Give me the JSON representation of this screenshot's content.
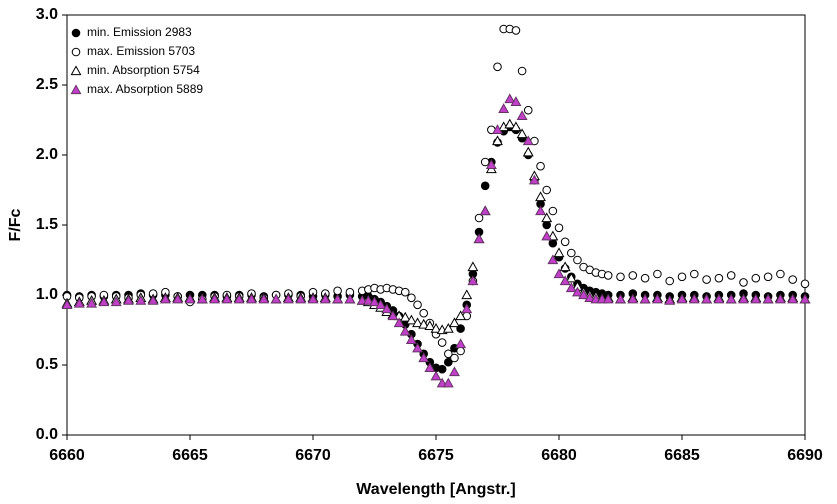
{
  "chart_data": {
    "type": "scatter",
    "xlabel": "Wavelength [Angstr.]",
    "ylabel": "F/Fc",
    "xlim": [
      6660,
      6690
    ],
    "ylim": [
      0,
      3
    ],
    "xticks": [
      6660,
      6665,
      6670,
      6675,
      6680,
      6685,
      6690
    ],
    "yticks": [
      {
        "value": 0,
        "label": "0.0"
      },
      {
        "value": 0.5,
        "label": "0.5"
      },
      {
        "value": 1,
        "label": "1.0"
      },
      {
        "value": 1.5,
        "label": "1.5"
      },
      {
        "value": 2,
        "label": "2.0"
      },
      {
        "value": 2.5,
        "label": "2.5"
      },
      {
        "value": 3,
        "label": "3.0"
      }
    ],
    "grid": false,
    "legend": "upper-left",
    "x": [
      6660,
      6660.5,
      6661,
      6661.5,
      6662,
      6662.5,
      6663,
      6663.5,
      6664,
      6664.5,
      6665,
      6665.5,
      6666,
      6666.5,
      6667,
      6667.5,
      6668,
      6668.5,
      6669,
      6669.5,
      6670,
      6670.5,
      6671,
      6671.5,
      6672,
      6672.25,
      6672.5,
      6672.75,
      6673,
      6673.25,
      6673.5,
      6673.75,
      6674,
      6674.25,
      6674.5,
      6674.75,
      6675,
      6675.25,
      6675.5,
      6675.75,
      6676,
      6676.25,
      6676.5,
      6676.75,
      6677,
      6677.25,
      6677.5,
      6677.75,
      6678,
      6678.25,
      6678.5,
      6678.75,
      6679,
      6679.25,
      6679.5,
      6679.75,
      6680,
      6680.25,
      6680.5,
      6680.75,
      6681,
      6681.25,
      6681.5,
      6681.75,
      6682,
      6682.5,
      6683,
      6683.5,
      6684,
      6684.5,
      6685,
      6685.5,
      6686,
      6686.5,
      6687,
      6687.5,
      6688,
      6688.5,
      6689,
      6689.5,
      6690
    ],
    "series": [
      {
        "name": "min. Emission 2983",
        "marker": "circle",
        "color": "#000000",
        "fill": "#000000",
        "values": [
          1.0,
          0.99,
          1.0,
          0.99,
          1.0,
          1.0,
          1.01,
          1.0,
          1.0,
          0.99,
          1.0,
          1.0,
          1.0,
          0.99,
          1.0,
          1.0,
          0.99,
          1.0,
          1.0,
          1.0,
          0.99,
          1.0,
          0.99,
          1.0,
          0.99,
          0.99,
          0.97,
          0.95,
          0.92,
          0.89,
          0.85,
          0.79,
          0.72,
          0.65,
          0.58,
          0.52,
          0.48,
          0.47,
          0.52,
          0.62,
          0.76,
          0.93,
          1.15,
          1.45,
          1.78,
          1.95,
          2.09,
          2.17,
          2.2,
          2.18,
          2.12,
          2.0,
          1.82,
          1.65,
          1.5,
          1.37,
          1.27,
          1.19,
          1.13,
          1.08,
          1.05,
          1.03,
          1.02,
          1.01,
          1.0,
          1.0,
          1.01,
          1.0,
          1.0,
          0.99,
          1.0,
          1.0,
          0.99,
          1.0,
          1.0,
          1.01,
          1.0,
          0.99,
          1.0,
          1.0,
          0.99
        ]
      },
      {
        "name": "max. Emission 5703",
        "marker": "circle",
        "color": "#000000",
        "fill": "#ffffff",
        "values": [
          0.99,
          0.98,
          0.99,
          1.0,
          0.99,
          0.98,
          1.0,
          1.01,
          1.02,
          0.99,
          0.95,
          0.97,
          0.99,
          1.0,
          0.99,
          1.01,
          0.98,
          1.0,
          1.01,
          0.99,
          1.02,
          1.01,
          1.03,
          1.02,
          1.03,
          1.04,
          1.05,
          1.04,
          1.05,
          1.04,
          1.03,
          1.02,
          0.98,
          0.93,
          0.87,
          0.8,
          0.72,
          0.66,
          0.58,
          0.55,
          0.6,
          0.85,
          1.1,
          1.55,
          1.95,
          2.18,
          2.63,
          2.9,
          2.9,
          2.89,
          2.6,
          2.32,
          2.1,
          1.92,
          1.75,
          1.6,
          1.48,
          1.38,
          1.3,
          1.25,
          1.2,
          1.18,
          1.16,
          1.15,
          1.14,
          1.13,
          1.14,
          1.12,
          1.15,
          1.1,
          1.13,
          1.15,
          1.11,
          1.12,
          1.14,
          1.09,
          1.12,
          1.13,
          1.15,
          1.11,
          1.08
        ]
      },
      {
        "name": "min. Absorption 5754",
        "marker": "triangle",
        "color": "#000000",
        "fill": "#ffffff",
        "values": [
          0.94,
          0.95,
          0.96,
          0.96,
          0.97,
          0.97,
          0.98,
          0.97,
          0.98,
          0.98,
          0.98,
          0.97,
          0.98,
          0.98,
          0.98,
          0.98,
          0.98,
          0.97,
          0.98,
          0.98,
          0.98,
          0.98,
          0.97,
          0.97,
          0.96,
          0.95,
          0.93,
          0.91,
          0.88,
          0.86,
          0.85,
          0.84,
          0.82,
          0.8,
          0.79,
          0.78,
          0.76,
          0.75,
          0.76,
          0.8,
          0.85,
          1.0,
          1.2,
          1.4,
          1.6,
          1.9,
          2.1,
          2.2,
          2.22,
          2.2,
          2.15,
          2.02,
          1.85,
          1.7,
          1.55,
          1.42,
          1.3,
          1.2,
          1.12,
          1.06,
          1.02,
          1.0,
          0.99,
          0.98,
          0.98,
          0.97,
          0.98,
          0.97,
          0.98,
          0.97,
          0.98,
          0.98,
          0.97,
          0.98,
          0.97,
          0.98,
          0.98,
          0.97,
          0.98,
          0.98,
          0.97
        ]
      },
      {
        "name": "max. Absorption 5889",
        "marker": "triangle",
        "color": "#663366",
        "fill": "#c040c8",
        "values": [
          0.93,
          0.94,
          0.94,
          0.95,
          0.95,
          0.96,
          0.96,
          0.96,
          0.97,
          0.97,
          0.97,
          0.97,
          0.97,
          0.97,
          0.97,
          0.97,
          0.97,
          0.97,
          0.97,
          0.97,
          0.97,
          0.97,
          0.97,
          0.97,
          0.96,
          0.96,
          0.95,
          0.93,
          0.9,
          0.85,
          0.8,
          0.74,
          0.68,
          0.62,
          0.55,
          0.48,
          0.42,
          0.37,
          0.37,
          0.45,
          0.65,
          0.9,
          1.1,
          1.4,
          1.6,
          1.93,
          2.18,
          2.33,
          2.4,
          2.38,
          2.28,
          2.1,
          1.82,
          1.6,
          1.42,
          1.25,
          1.15,
          1.1,
          1.05,
          1.02,
          1.0,
          0.98,
          0.97,
          0.97,
          0.97,
          0.97,
          0.97,
          0.97,
          0.97,
          0.96,
          0.97,
          0.97,
          0.97,
          0.97,
          0.97,
          0.97,
          0.97,
          0.97,
          0.97,
          0.97,
          0.97
        ]
      }
    ]
  }
}
